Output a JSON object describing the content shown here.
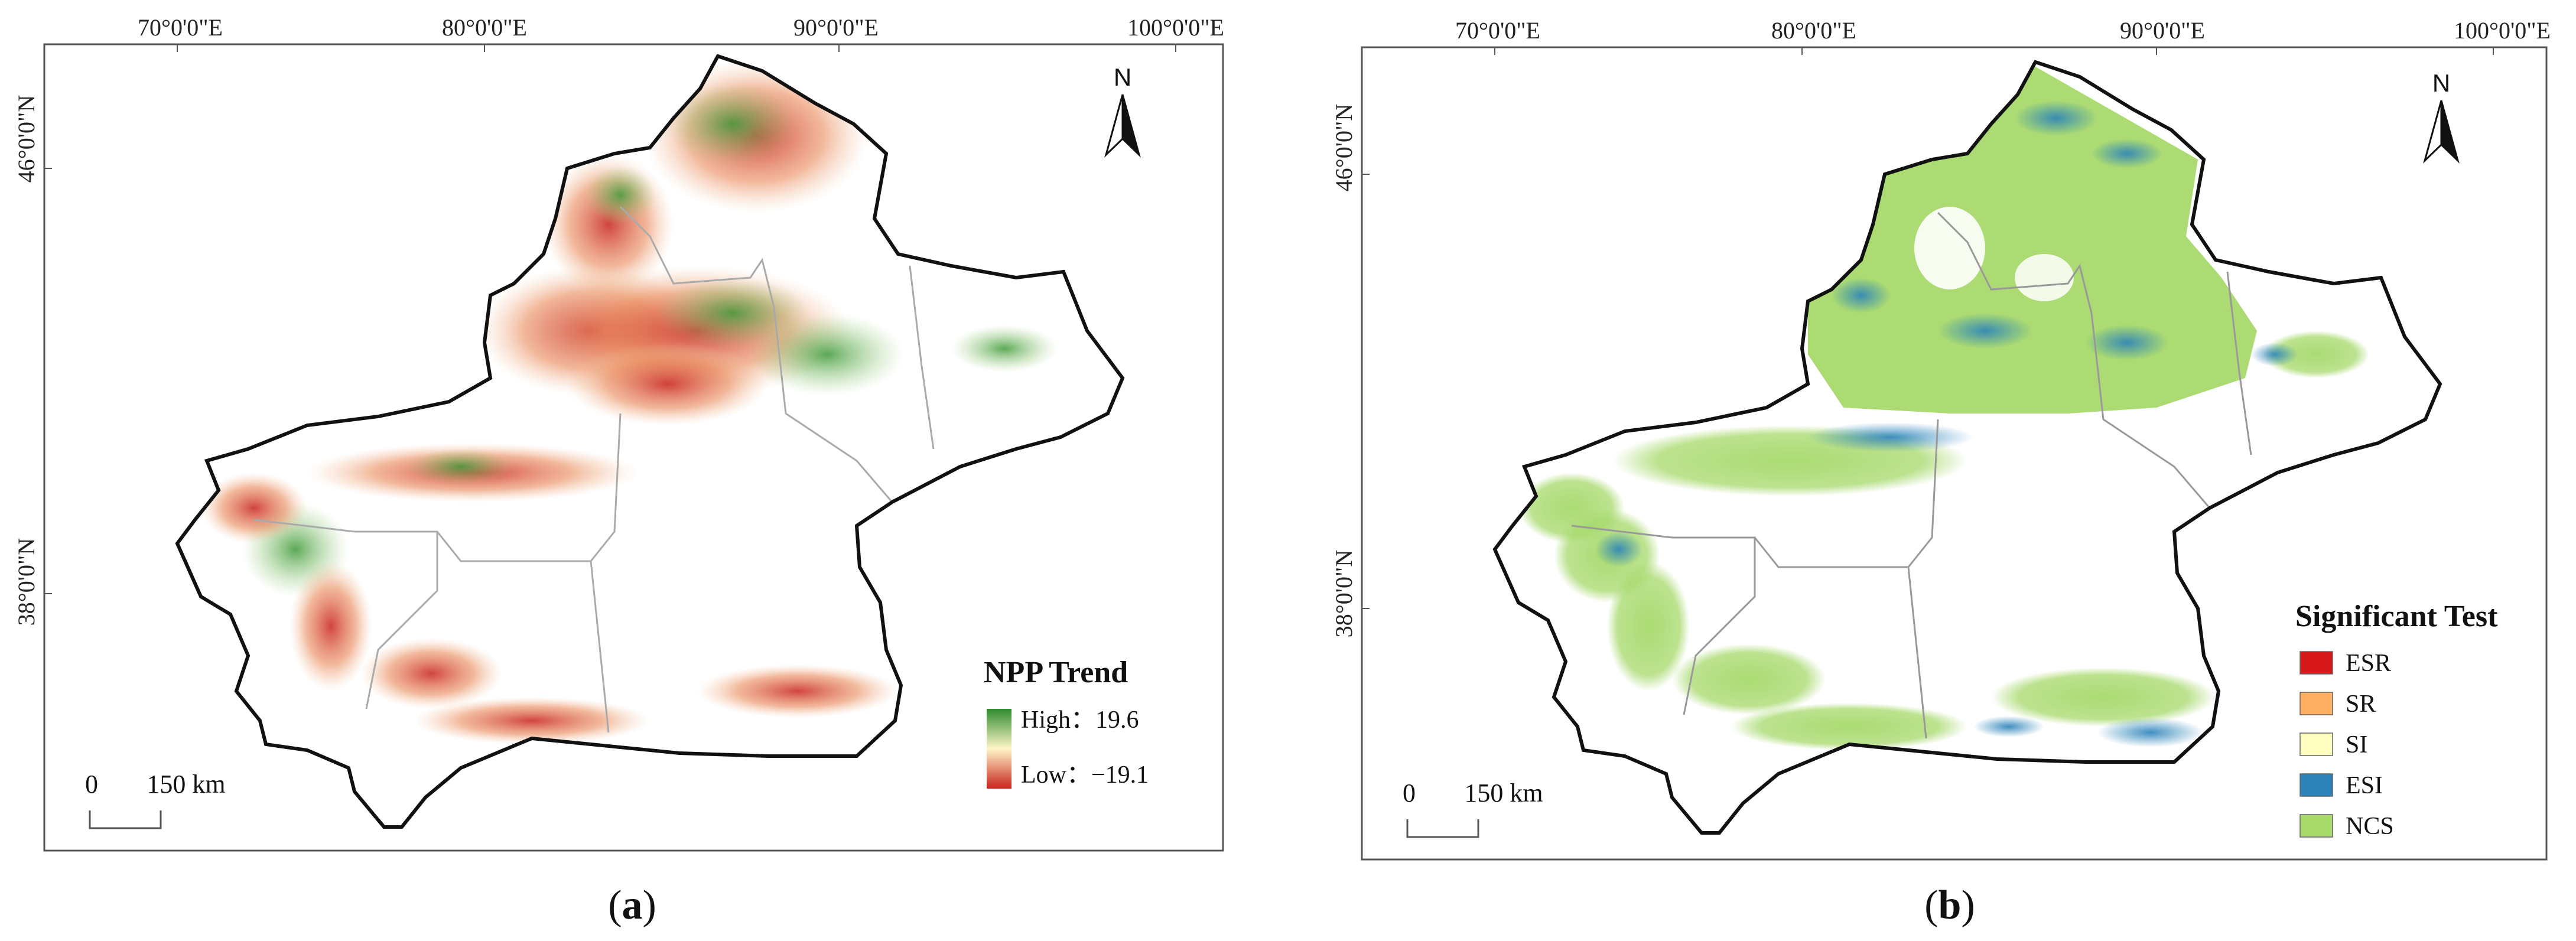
{
  "panels": [
    {
      "id": "a",
      "caption_open": "(",
      "caption_letter": "a",
      "caption_close": ")",
      "lon_ticks": [
        "70°0'0\"E",
        "80°0'0\"E",
        "90°0'0\"E",
        "100°0'0\"E"
      ],
      "lat_ticks": [
        "46°0'0\"N",
        "38°0'0\"N"
      ],
      "north_label": "N",
      "scale": {
        "zero": "0",
        "label": "150 km"
      },
      "legend": {
        "title": "NPP Trend",
        "high_label": "High：19.6",
        "low_label": "Low：−19.1",
        "colors": {
          "high": "#2e8b2e",
          "mid": "#fff6c8",
          "low": "#c8231c"
        }
      }
    },
    {
      "id": "b",
      "caption_open": "(",
      "caption_letter": "b",
      "caption_close": ")",
      "lon_ticks": [
        "70°0'0\"E",
        "80°0'0\"E",
        "90°0'0\"E",
        "100°0'0\"E"
      ],
      "lat_ticks": [
        "46°0'0\"N",
        "38°0'0\"N"
      ],
      "north_label": "N",
      "scale": {
        "zero": "0",
        "label": "150 km"
      },
      "legend": {
        "title": "Significant Test",
        "items": [
          {
            "label": "ESR",
            "color": "#d7191c"
          },
          {
            "label": "SR",
            "color": "#fdae61"
          },
          {
            "label": "SI",
            "color": "#ffffbf"
          },
          {
            "label": "ESI",
            "color": "#2b83ba"
          },
          {
            "label": "NCS",
            "color": "#a6d96a"
          }
        ]
      }
    }
  ]
}
